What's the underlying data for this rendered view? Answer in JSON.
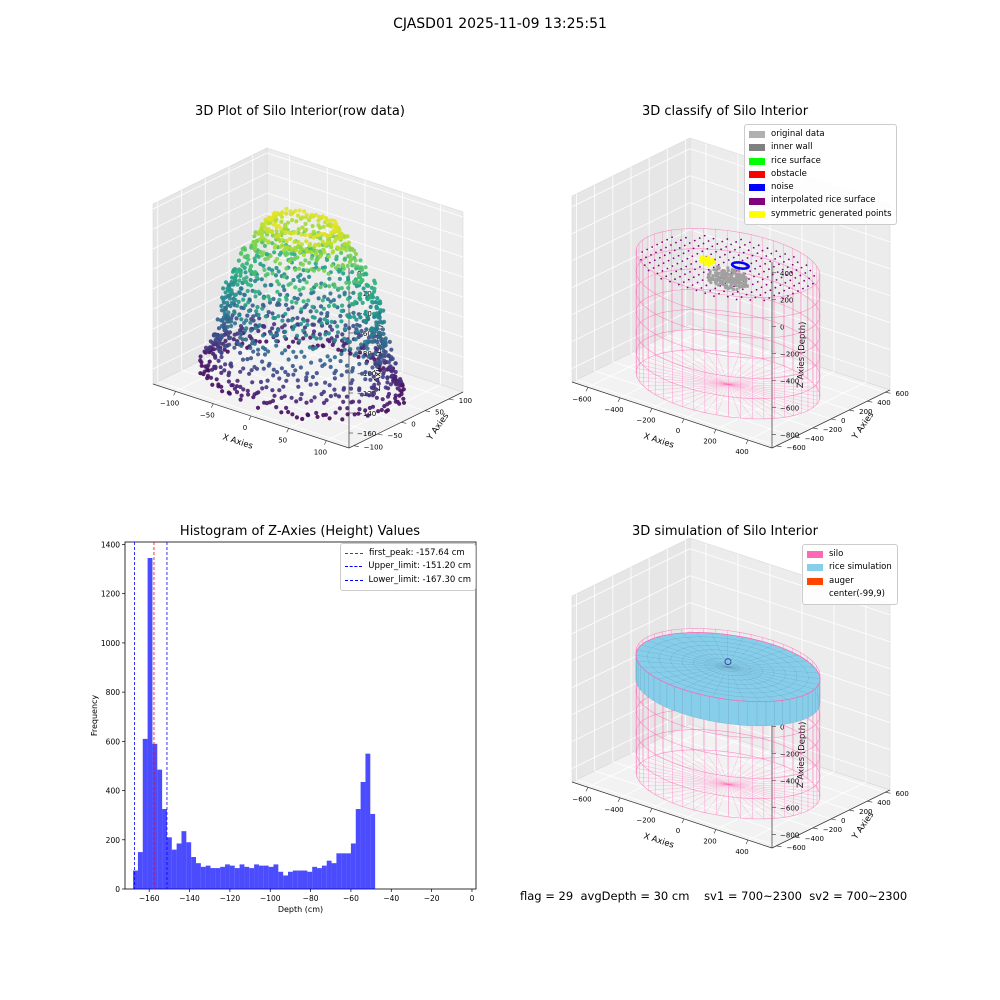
{
  "figure": {
    "suptitle": "CJASD01 2025-11-09 13:25:51",
    "status": {
      "flag": "flag = 29",
      "avg_depth": "avgDepth = 30 cm",
      "sv1": "sv1 = 700~2300",
      "sv2": "sv2 = 700~2300"
    }
  },
  "chart_data": [
    {
      "type": "scatter",
      "projection": "3d",
      "title": "3D Plot of Silo Interior(row data)",
      "xlabel": "X Axies",
      "ylabel": "Y Axies",
      "zlabel": "Z Axies (Depth)",
      "xticks": [
        -100,
        -50,
        0,
        50,
        100
      ],
      "yticks": [
        -100,
        -50,
        0,
        50,
        100
      ],
      "zticks": [
        0,
        -20,
        -40,
        -60,
        -80,
        -100,
        -120,
        -140,
        -160
      ],
      "xlim": [
        -130,
        130
      ],
      "ylim": [
        -110,
        130
      ],
      "zlim": [
        -175,
        5
      ],
      "colormap": "viridis",
      "rings": [
        {
          "radius": 115,
          "z": -162,
          "jitter": 6
        },
        {
          "radius": 108,
          "z": -150,
          "jitter": 6
        },
        {
          "radius": 100,
          "z": -138,
          "jitter": 7
        },
        {
          "radius": 95,
          "z": -125,
          "jitter": 7
        },
        {
          "radius": 92,
          "z": -110,
          "jitter": 7
        },
        {
          "radius": 90,
          "z": -95,
          "jitter": 6
        },
        {
          "radius": 85,
          "z": -80,
          "jitter": 6
        },
        {
          "radius": 78,
          "z": -65,
          "jitter": 6
        },
        {
          "radius": 68,
          "z": -50,
          "jitter": 5
        },
        {
          "radius": 58,
          "z": -35,
          "jitter": 4
        },
        {
          "radius": 50,
          "z": -22,
          "jitter": 3
        },
        {
          "radius": 44,
          "z": -14,
          "jitter": 2
        },
        {
          "radius": 38,
          "z": -8,
          "jitter": 2
        },
        {
          "radius": 30,
          "z": -24,
          "jitter": 3
        },
        {
          "radius": 20,
          "z": -40,
          "jitter": 3
        }
      ]
    },
    {
      "type": "scatter",
      "projection": "3d",
      "title": "3D classify of Silo Interior",
      "xlabel": "X Axies",
      "ylabel": "Y Axies",
      "zlabel": "Z Axies (Depth)",
      "xticks": [
        -600,
        -400,
        -200,
        0,
        200,
        400
      ],
      "yticks": [
        -600,
        -400,
        -200,
        0,
        200,
        400,
        600
      ],
      "zticks": [
        400,
        200,
        0,
        -200,
        -400,
        -600,
        -800
      ],
      "xlim": [
        -700,
        550
      ],
      "ylim": [
        -650,
        650
      ],
      "zlim": [
        -900,
        480
      ],
      "legend": {
        "placement": "top-right",
        "entries": [
          {
            "label": "original data",
            "color": "#b0b0b0"
          },
          {
            "label": "inner wall",
            "color": "#808080"
          },
          {
            "label": "rice surface",
            "color": "#00ff00"
          },
          {
            "label": "obstacle",
            "color": "#ff0000"
          },
          {
            "label": "noise",
            "color": "#0000ff"
          },
          {
            "label": "interpolated rice surface",
            "color": "#800080"
          },
          {
            "label": "symmetric generated points",
            "color": "#ffff00"
          }
        ]
      },
      "silo": {
        "center": [
          -99,
          9
        ],
        "radius": 500,
        "z_top": 0,
        "z_bottom": -900
      }
    },
    {
      "type": "bar",
      "title": "Histogram of Z-Axies (Height) Values",
      "xlabel": "Depth (cm)",
      "ylabel": "Frequency",
      "xlim": [
        -172,
        2
      ],
      "ylim": [
        0,
        1410
      ],
      "xticks": [
        -160,
        -140,
        -120,
        -100,
        -80,
        -60,
        -40,
        -20,
        0
      ],
      "yticks": [
        0,
        200,
        400,
        600,
        800,
        1000,
        1200,
        1400
      ],
      "bin_start": -168,
      "bin_width": 2.4,
      "bar_color": "#0000ff",
      "values": [
        75,
        150,
        610,
        1345,
        590,
        485,
        325,
        210,
        160,
        185,
        235,
        190,
        130,
        105,
        90,
        95,
        85,
        85,
        90,
        100,
        95,
        85,
        100,
        90,
        85,
        100,
        95,
        95,
        90,
        100,
        70,
        55,
        70,
        75,
        75,
        75,
        70,
        90,
        85,
        95,
        115,
        105,
        145,
        145,
        145,
        185,
        325,
        435,
        550,
        305
      ],
      "vlines": [
        {
          "label": "first_peak: -157.64 cm",
          "x": -157.64,
          "color": "#ff0000"
        },
        {
          "label": "Upper_limit: -151.20 cm",
          "x": -151.2,
          "color": "#0000ff"
        },
        {
          "label": "Lower_limit: -167.30 cm",
          "x": -167.3,
          "color": "#0000ff"
        }
      ],
      "legend": {
        "placement": "top-right"
      }
    },
    {
      "type": "surface",
      "projection": "3d",
      "title": "3D simulation of Silo Interior",
      "xlabel": "X Axies",
      "ylabel": "Y Axies",
      "zlabel": "Z Axies (Depth)",
      "xticks": [
        -600,
        -400,
        -200,
        0,
        200,
        400
      ],
      "yticks": [
        -600,
        -400,
        -200,
        0,
        200,
        400,
        600
      ],
      "zticks": [
        400,
        200,
        0,
        -200,
        -400,
        -600,
        -800
      ],
      "xlim": [
        -700,
        550
      ],
      "ylim": [
        -650,
        650
      ],
      "zlim": [
        -900,
        480
      ],
      "legend": {
        "placement": "top-right",
        "entries": [
          {
            "label": "silo",
            "color": "#ff69b4"
          },
          {
            "label": "rice simulation",
            "color": "#87ceeb"
          },
          {
            "label": "auger",
            "color": "#ff4500"
          },
          {
            "label": "center(-99,9)",
            "color": ""
          }
        ]
      },
      "silo": {
        "center": [
          -99,
          9
        ],
        "radius": 500,
        "z_top": 0,
        "z_bottom": -900
      },
      "rice_surface_z": -30
    }
  ]
}
